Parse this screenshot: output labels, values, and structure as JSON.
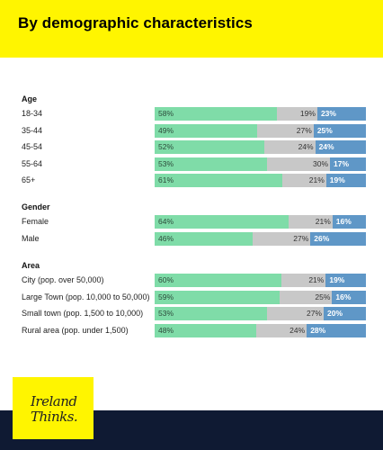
{
  "header": {
    "title": "By demographic characteristics"
  },
  "colors": {
    "positive": "#7fdca8",
    "neutral": "#c8c8c8",
    "negative": "#5f97c7",
    "header": "#fff500",
    "footer": "#0f1a33"
  },
  "logo": {
    "line1": "Ireland",
    "line2": "Thinks."
  },
  "chart_data": {
    "type": "bar",
    "orientation": "horizontal-stacked-100",
    "title": "By demographic characteristics",
    "series": [
      {
        "name": "",
        "color": "#7fdca8"
      },
      {
        "name": "",
        "color": "#c8c8c8"
      },
      {
        "name": "",
        "color": "#5f97c7"
      }
    ],
    "groups": [
      {
        "title": "Age",
        "rows": [
          {
            "label": "18-34",
            "values": [
              58,
              19,
              23
            ]
          },
          {
            "label": "35-44",
            "values": [
              49,
              27,
              25
            ]
          },
          {
            "label": "45-54",
            "values": [
              52,
              24,
              24
            ]
          },
          {
            "label": "55-64",
            "values": [
              53,
              30,
              17
            ]
          },
          {
            "label": "65+",
            "values": [
              61,
              21,
              19
            ]
          }
        ]
      },
      {
        "title": "Gender",
        "rows": [
          {
            "label": "Female",
            "values": [
              64,
              21,
              16
            ]
          },
          {
            "label": "Male",
            "values": [
              46,
              27,
              26
            ]
          }
        ]
      },
      {
        "title": "Area",
        "rows": [
          {
            "label": "City (pop. over 50,000)",
            "values": [
              60,
              21,
              19
            ]
          },
          {
            "label": "Large Town (pop. 10,000 to 50,000)",
            "values": [
              59,
              25,
              16
            ]
          },
          {
            "label": "Small town (pop. 1,500 to 10,000)",
            "values": [
              53,
              27,
              20
            ]
          },
          {
            "label": "Rural area (pop. under 1,500)",
            "values": [
              48,
              24,
              28
            ]
          }
        ]
      }
    ]
  }
}
